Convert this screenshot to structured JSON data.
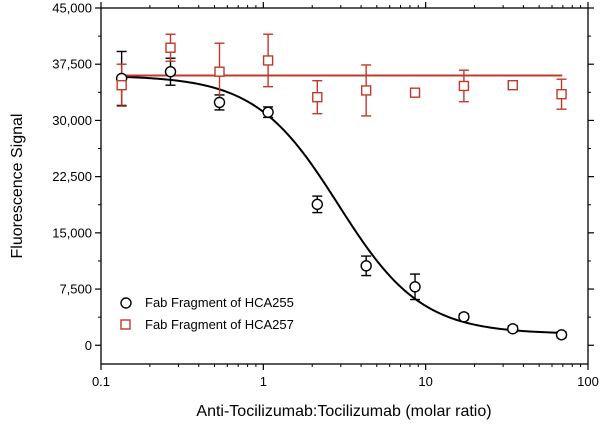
{
  "chart_data": {
    "type": "scatter",
    "title": "",
    "xlabel": "Anti-Tocilizumab:Tocilizumab (molar ratio)",
    "ylabel": "Fluorescence Signal",
    "xscale": "log",
    "xlim": [
      0.1,
      100
    ],
    "ylim": [
      -2500,
      45000
    ],
    "x_ticks": [
      "0.1",
      "1",
      "10",
      "100"
    ],
    "y_ticks": [
      "0",
      "7,500",
      "15,000",
      "22,500",
      "30,000",
      "37,500",
      "45,000"
    ],
    "legend_position": "bottom-left",
    "series": [
      {
        "name": "Fab Fragment of HCA255",
        "marker": "circle",
        "color": "#000000",
        "points": [
          {
            "x": 0.134,
            "y": 35600,
            "err": 3600
          },
          {
            "x": 0.268,
            "y": 36500,
            "err": 1800
          },
          {
            "x": 0.537,
            "y": 32400,
            "err": 1000
          },
          {
            "x": 1.07,
            "y": 31100,
            "err": 700
          },
          {
            "x": 2.15,
            "y": 18800,
            "err": 1100
          },
          {
            "x": 4.3,
            "y": 10600,
            "err": 1300
          },
          {
            "x": 8.6,
            "y": 7800,
            "err": 1700
          },
          {
            "x": 17.2,
            "y": 3800,
            "err": 400
          },
          {
            "x": 34.4,
            "y": 2200,
            "err": 400
          },
          {
            "x": 68.7,
            "y": 1400,
            "err": 400
          }
        ],
        "fit": {
          "model": "four-parameter logistic",
          "top": 36000,
          "bottom": 1500,
          "ec50": 2.9,
          "hill": 1.7
        }
      },
      {
        "name": "Fab Fragment of HCA257",
        "marker": "square",
        "color": "#c0392b",
        "points": [
          {
            "x": 0.134,
            "y": 34700,
            "err": 2800
          },
          {
            "x": 0.268,
            "y": 39700,
            "err": 1800
          },
          {
            "x": 0.537,
            "y": 36500,
            "err": 3800
          },
          {
            "x": 1.07,
            "y": 38000,
            "err": 3500
          },
          {
            "x": 2.15,
            "y": 33100,
            "err": 2200
          },
          {
            "x": 4.3,
            "y": 34000,
            "err": 3400
          },
          {
            "x": 8.6,
            "y": 33700,
            "err": 400
          },
          {
            "x": 17.2,
            "y": 34600,
            "err": 2100
          },
          {
            "x": 34.4,
            "y": 34700,
            "err": 400
          },
          {
            "x": 68.7,
            "y": 33500,
            "err": 2000
          }
        ],
        "fit": {
          "model": "constant",
          "value": 36000
        }
      }
    ]
  }
}
